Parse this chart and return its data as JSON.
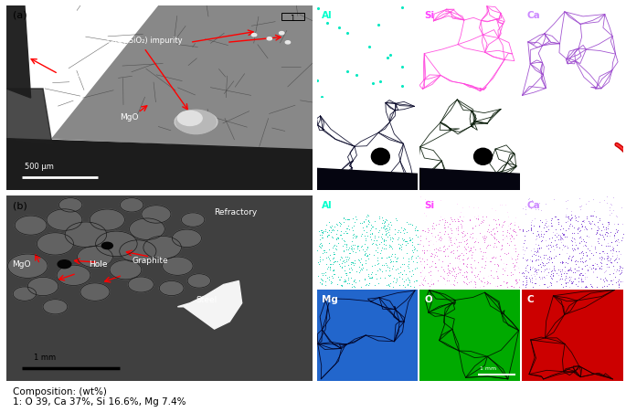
{
  "fig_width": 6.85,
  "fig_height": 4.52,
  "bg_color": "#ffffff",
  "annotation_color": "red",
  "composition_text": "Composition: (wt%)\n1: O 39, Ca 37%, Si 16.6%, Mg 7.4%",
  "elemental_maps_row1": [
    {
      "label": "Al",
      "label_color": "#00ffcc",
      "style": "sparse_dots_cyan"
    },
    {
      "label": "Si",
      "label_color": "#ff44ff",
      "style": "grain_boundary_magenta"
    },
    {
      "label": "Ca",
      "label_color": "#cc88ff",
      "style": "grain_boundary_purple"
    }
  ],
  "elemental_maps_row2": [
    {
      "label": "Mg",
      "label_color": "white",
      "style": "blue_full_grains"
    },
    {
      "label": "O",
      "label_color": "white",
      "style": "green_full_grains"
    },
    {
      "label": "C",
      "label_color": "white",
      "style": "black_red_corner",
      "scalebar": "500 μm"
    }
  ],
  "elemental_maps_row3": [
    {
      "label": "Al",
      "label_color": "#00ffcc",
      "style": "cyan_arc_lower"
    },
    {
      "label": "Si",
      "label_color": "#ff44ff",
      "style": "magenta_arc_lower"
    },
    {
      "label": "Ca",
      "label_color": "#cc88ff",
      "style": "purple_arc_lower"
    }
  ],
  "elemental_maps_row4": [
    {
      "label": "Mg",
      "label_color": "white",
      "style": "blue_arc_lower"
    },
    {
      "label": "O",
      "label_color": "white",
      "style": "green_arc_lower"
    },
    {
      "label": "C",
      "label_color": "white",
      "style": "red_arc_lower",
      "scalebar": "1 mm"
    }
  ]
}
